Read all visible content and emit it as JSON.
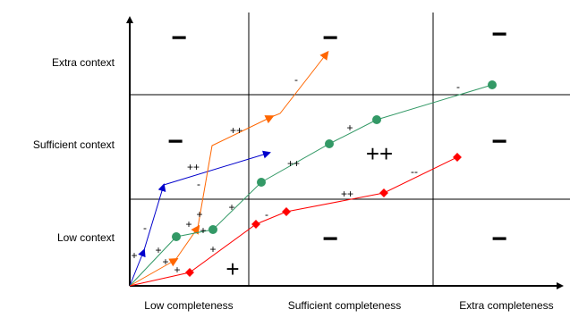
{
  "y_axis_labels": [
    "Low context",
    "Sufficient context",
    "Extra context"
  ],
  "x_axis_labels": [
    "Low completeness",
    "Sufficient completeness",
    "Extra completeness"
  ],
  "cell_marks": {
    "minus": "−",
    "plus": "+",
    "plus_plus": "++"
  },
  "annotations": [
    "+",
    "-",
    "+",
    "+",
    "+",
    "+",
    "+",
    "+",
    "-",
    "+",
    "+",
    "++",
    "-",
    "++",
    "-",
    "++",
    "+",
    "++",
    "-",
    "++",
    "--",
    "-"
  ],
  "colors": {
    "blue": "#0000cc",
    "orange": "#ff6600",
    "green": "#339966",
    "red": "#ff0000",
    "grid": "#000000"
  }
}
